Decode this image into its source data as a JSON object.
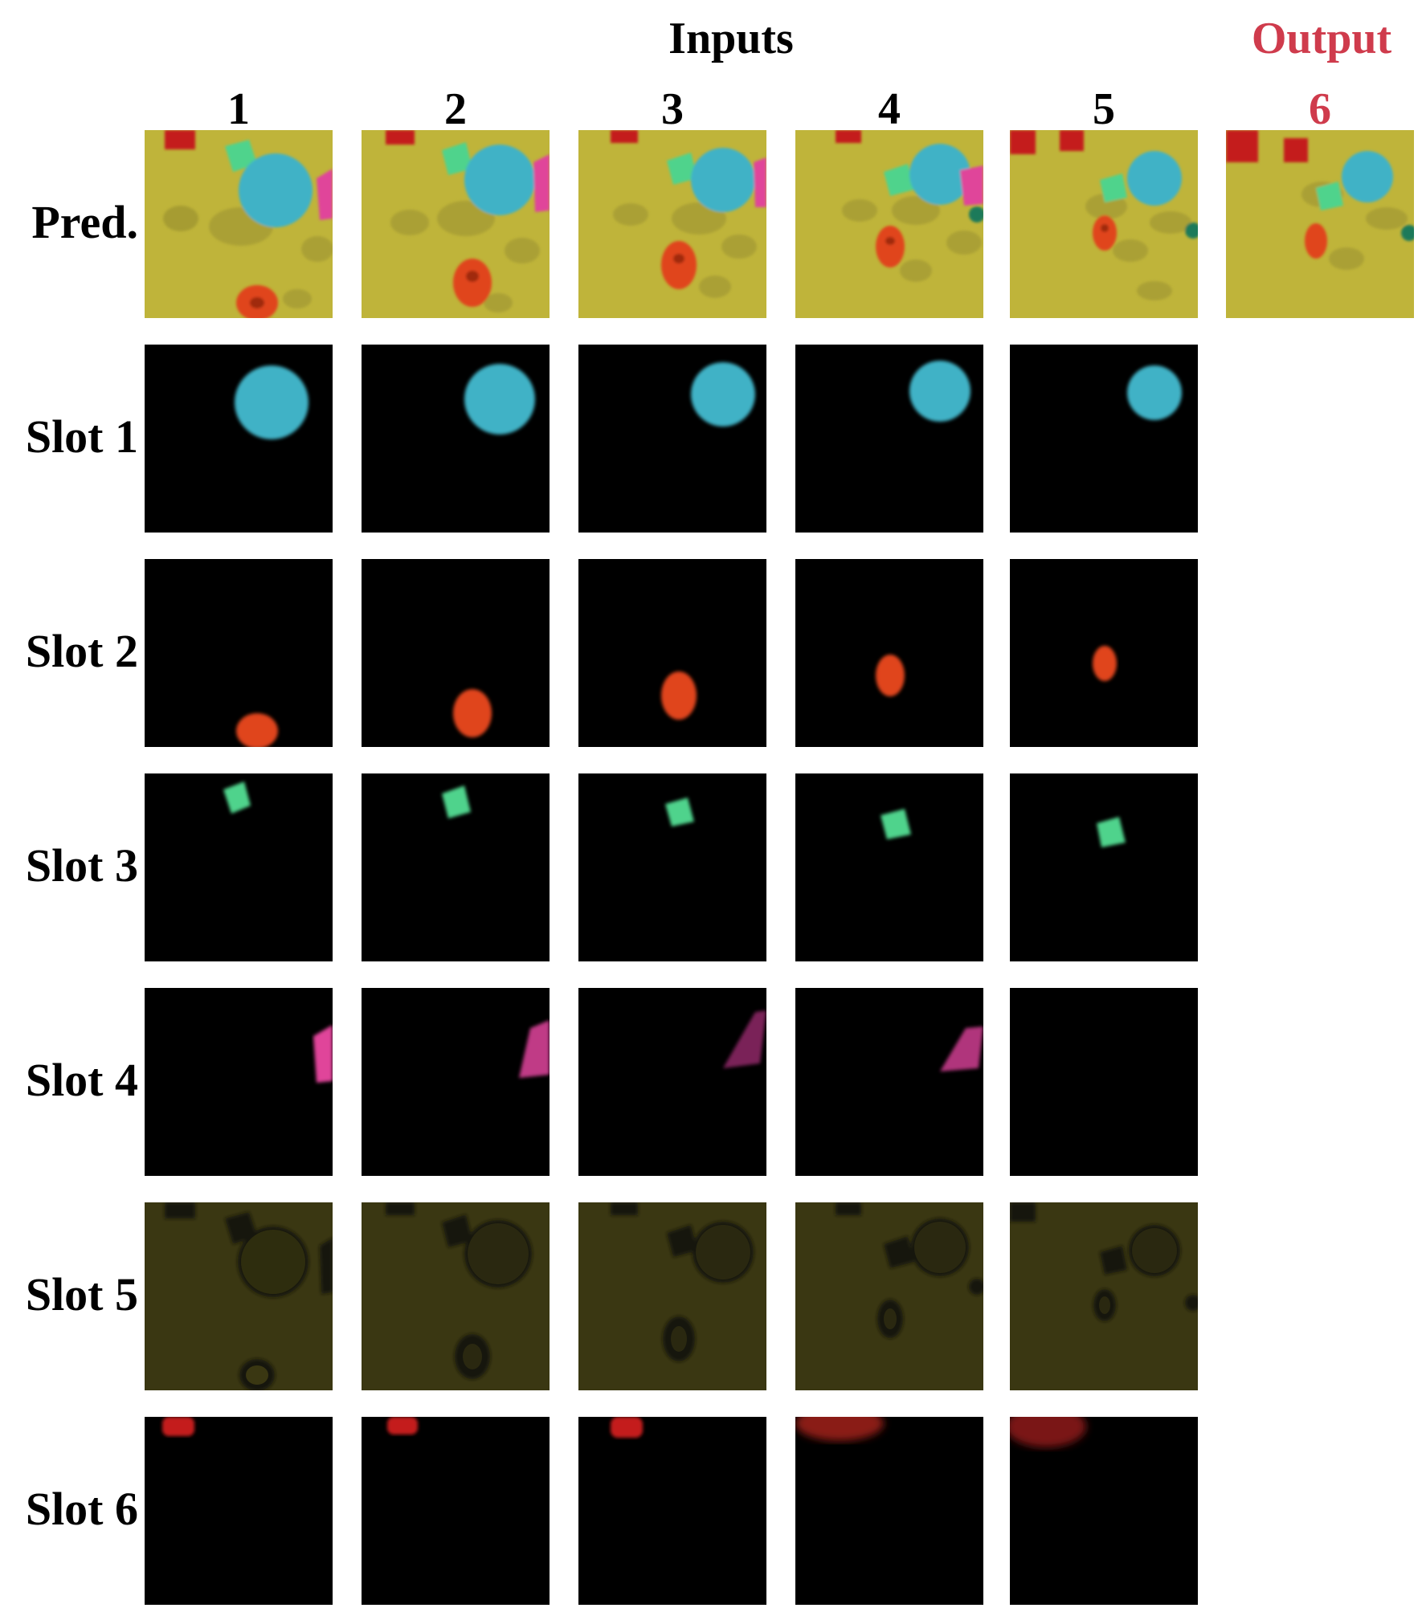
{
  "header": {
    "inputs_label": "Inputs",
    "output_label": "Output",
    "output_color": "#cf3b4c",
    "columns": [
      "1",
      "2",
      "3",
      "4",
      "5",
      "6"
    ]
  },
  "rows": [
    {
      "label": "Pred."
    },
    {
      "label": "Slot 1"
    },
    {
      "label": "Slot 2"
    },
    {
      "label": "Slot 3"
    },
    {
      "label": "Slot 4"
    },
    {
      "label": "Slot 5"
    },
    {
      "label": "Slot 6"
    }
  ],
  "colors": {
    "floor": "#bfb43a",
    "floor_dark": "#3a3712",
    "sphere": "#3fb2c6",
    "ring": "#e0441c",
    "cube": "#4fd38c",
    "pink": "#e0449a",
    "red_cube": "#c41e1e",
    "mask_bg": "#000000"
  }
}
